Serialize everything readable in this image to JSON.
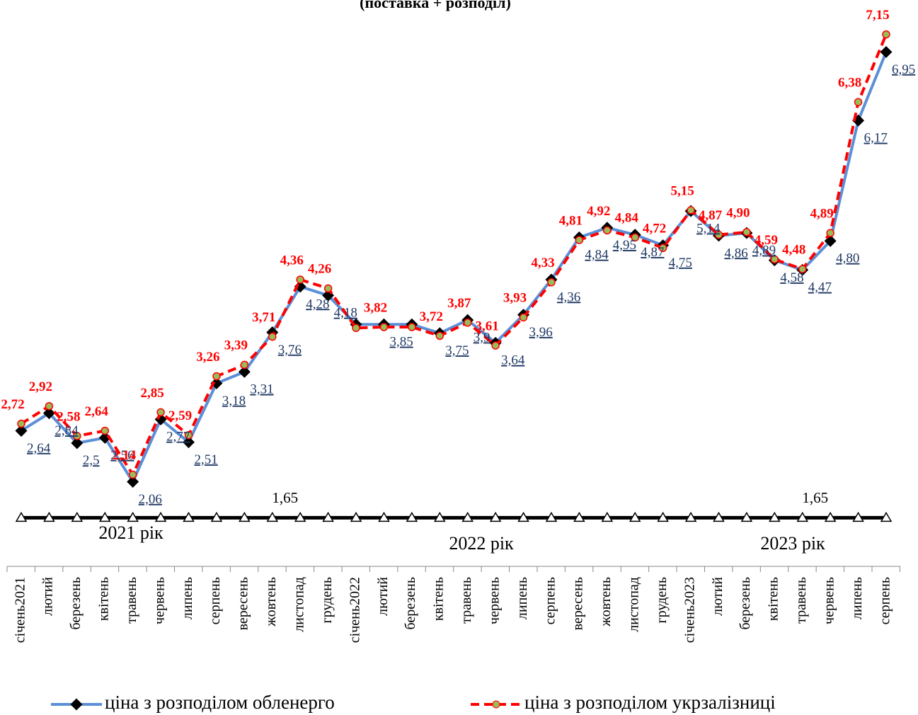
{
  "chart_data": {
    "type": "line",
    "title": "(поставка + розподіл)",
    "categories": [
      "січень2021",
      "лютий",
      "березень",
      "квітень",
      "травень",
      "червень",
      "липень",
      "серпень",
      "вересень",
      "жовтень",
      "листопад",
      "грудень",
      "січень2022",
      "лютий",
      "березень",
      "квітень",
      "травень",
      "червень",
      "липень",
      "серпень",
      "вересень",
      "жовтень",
      "листопад",
      "грудень",
      "січень2023",
      "лютий",
      "березень",
      "квітень",
      "травень",
      "червень",
      "липень",
      "серпень"
    ],
    "year_labels": [
      "2021 рік",
      "2022 рік",
      "2023 рік"
    ],
    "ylim": [
      1.5,
      7.3
    ],
    "series": [
      {
        "name": "ціна з розподілом обленерго",
        "color": "#5b8fd6",
        "values": [
          2.64,
          2.84,
          2.5,
          2.56,
          2.06,
          2.77,
          2.51,
          3.18,
          3.31,
          3.76,
          4.28,
          4.18,
          3.85,
          3.85,
          3.85,
          3.75,
          3.9,
          3.64,
          3.96,
          4.36,
          4.84,
          4.95,
          4.87,
          4.75,
          5.14,
          4.86,
          4.89,
          4.58,
          4.47,
          4.8,
          6.17,
          6.95
        ],
        "value_labels": [
          "2,64",
          "2,84",
          "2,5",
          "2,56",
          "2,06",
          "2,77",
          "2,51",
          "3,18",
          "3,31",
          "3,76",
          "4,28",
          "4,18",
          null,
          "3,85",
          null,
          "3,75",
          "3,9",
          "3,64",
          "3,96",
          "4,36",
          "4,84",
          "4,95",
          "4,87",
          "4,75",
          "5,14",
          "4,86",
          "4,89",
          "4,58",
          "4,47",
          "4,80",
          "6,17",
          "6,95"
        ]
      },
      {
        "name": "ціна з розподілом укрзалізниці",
        "color": "#ff0000",
        "values": [
          2.72,
          2.92,
          2.58,
          2.64,
          2.14,
          2.85,
          2.59,
          3.26,
          3.39,
          3.71,
          4.36,
          4.26,
          3.81,
          3.82,
          3.82,
          3.72,
          3.87,
          3.61,
          3.93,
          4.33,
          4.81,
          4.92,
          4.84,
          4.72,
          5.15,
          4.87,
          4.9,
          4.59,
          4.48,
          4.89,
          6.38,
          7.15
        ],
        "value_labels": [
          "2,72",
          "2,92",
          "2,58",
          "2,64",
          "2,14",
          "2,85",
          "2,59",
          "3,26",
          "3,39",
          "3,71",
          "4,36",
          "4,26",
          null,
          "3,82",
          null,
          "3,72",
          "3,87",
          "3,61",
          "3,93",
          "4,33",
          "4,81",
          "4,92",
          "4,84",
          "4,72",
          "5,15",
          "4,87",
          "4,90",
          "4,59",
          "4,48",
          "4,89",
          "6,38",
          "7,15"
        ]
      },
      {
        "color": "#000000",
        "values": [
          1.65,
          1.65,
          1.65,
          1.65,
          1.65,
          1.65,
          1.65,
          1.65,
          1.65,
          1.65,
          1.65,
          1.65,
          1.65,
          1.65,
          1.65,
          1.65,
          1.65,
          1.65,
          1.65,
          1.65,
          1.65,
          1.65,
          1.65,
          1.65,
          1.65,
          1.65,
          1.65,
          1.65,
          1.65,
          1.65,
          1.65,
          1.65
        ],
        "value_labels": [
          null,
          null,
          null,
          null,
          null,
          null,
          null,
          null,
          null,
          "1,65",
          null,
          null,
          null,
          null,
          null,
          null,
          null,
          null,
          null,
          null,
          null,
          null,
          null,
          null,
          null,
          null,
          null,
          null,
          "1,65",
          null,
          null,
          null
        ]
      }
    ]
  }
}
